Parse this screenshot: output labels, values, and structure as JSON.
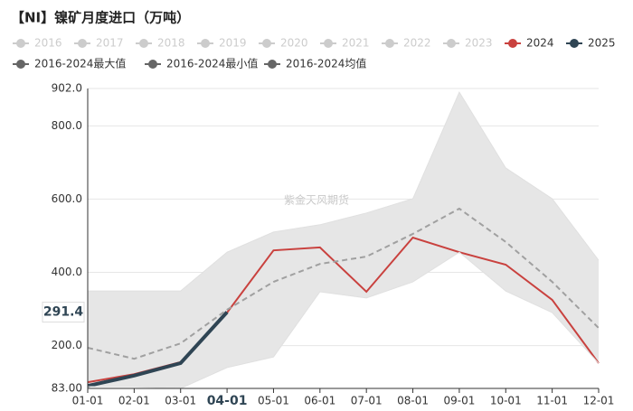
{
  "chart_data": {
    "type": "line",
    "title": "【NI】镍矿月度进口（万吨）",
    "watermark": "紫金天风期货",
    "categories": [
      "01-01",
      "02-01",
      "03-01",
      "04-01",
      "05-01",
      "06-01",
      "07-01",
      "08-01",
      "09-01",
      "10-01",
      "11-01",
      "12-01"
    ],
    "highlight_index": 3,
    "ylim": [
      83,
      902
    ],
    "yticks": [
      {
        "value": 83,
        "label": "83.00"
      },
      {
        "value": 200,
        "label": "200.0"
      },
      {
        "value": 400,
        "label": "400.0"
      },
      {
        "value": 600,
        "label": "600.0"
      },
      {
        "value": 800,
        "label": "800.0"
      },
      {
        "value": 902,
        "label": "902.0"
      }
    ],
    "grid": true,
    "series": [
      {
        "name": "2016",
        "color": "#cccccc",
        "visible": false
      },
      {
        "name": "2017",
        "color": "#cccccc",
        "visible": false
      },
      {
        "name": "2018",
        "color": "#cccccc",
        "visible": false
      },
      {
        "name": "2019",
        "color": "#cccccc",
        "visible": false
      },
      {
        "name": "2020",
        "color": "#cccccc",
        "visible": false
      },
      {
        "name": "2021",
        "color": "#cccccc",
        "visible": false
      },
      {
        "name": "2022",
        "color": "#cccccc",
        "visible": false
      },
      {
        "name": "2023",
        "color": "#cccccc",
        "visible": false
      },
      {
        "name": "2024",
        "color": "#c9413e",
        "visible": true,
        "style": "line",
        "values": [
          100,
          122,
          155,
          290,
          460,
          468,
          347,
          495,
          455,
          421,
          325,
          152
        ]
      },
      {
        "name": "2025",
        "color": "#2f4554",
        "visible": true,
        "style": "bold",
        "values": [
          90,
          118,
          152,
          291.4,
          null,
          null,
          null,
          null,
          null,
          null,
          null,
          null
        ]
      },
      {
        "name": "2016-2024最大值",
        "color": "#666666",
        "visible": true,
        "style": "band-top",
        "values": [
          349,
          349,
          349,
          455,
          510,
          530,
          562,
          601,
          892,
          685,
          601,
          433
        ]
      },
      {
        "name": "2016-2024最小值",
        "color": "#666666",
        "visible": true,
        "style": "band-bottom",
        "values": [
          88,
          88,
          83,
          140,
          169,
          347,
          330,
          374,
          455,
          349,
          290,
          152
        ]
      },
      {
        "name": "2016-2024均值",
        "color": "#666666",
        "visible": true,
        "style": "dashed",
        "values": [
          194,
          164,
          206,
          298,
          374,
          423,
          443,
          505,
          574,
          483,
          374,
          248
        ]
      }
    ]
  }
}
